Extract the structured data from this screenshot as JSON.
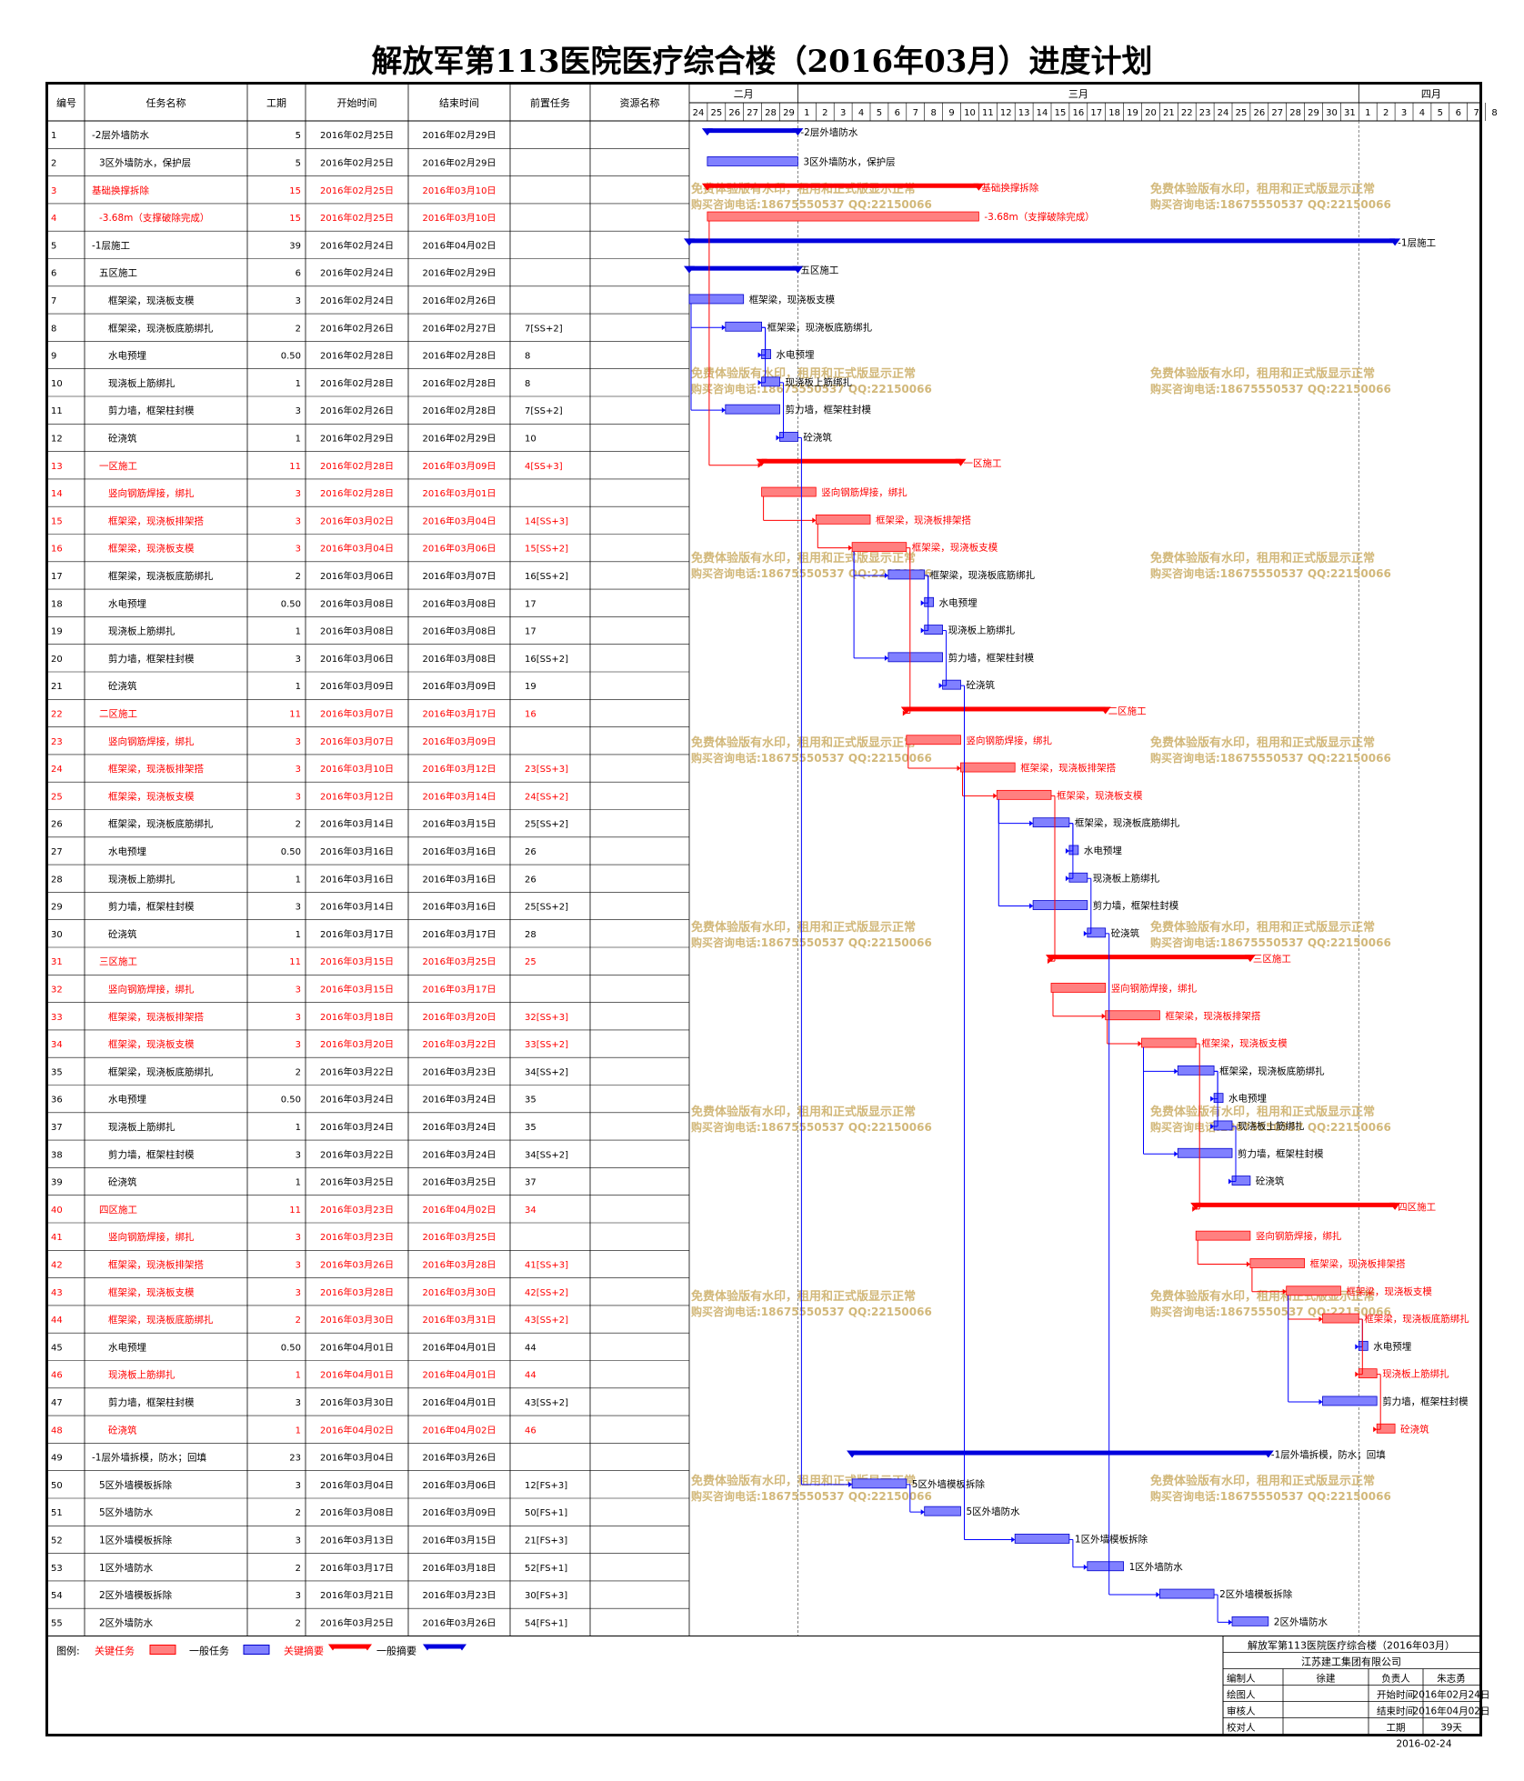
{
  "title": "解放军第113医院医疗综合楼（2016年03月）进度计划",
  "headers": [
    "编号",
    "任务名称",
    "工期",
    "开始时间",
    "结束时间",
    "前置任务",
    "资源名称"
  ],
  "months": [
    "二月",
    "三月",
    "四月"
  ],
  "day_labels": [
    "24",
    "25",
    "26",
    "27",
    "28",
    "29",
    "1",
    "2",
    "3",
    "4",
    "5",
    "6",
    "7",
    "8",
    "9",
    "10",
    "11",
    "12",
    "13",
    "14",
    "15",
    "16",
    "17",
    "18",
    "19",
    "20",
    "21",
    "22",
    "23",
    "24",
    "25",
    "26",
    "27",
    "28",
    "29",
    "30",
    "31",
    "1",
    "2",
    "3",
    "4",
    "5",
    "6",
    "7",
    "8"
  ],
  "watermark": {
    "line1": "免费体验版有水印，租用和正式版显示正常",
    "line2": "购买咨询电话:18675550537 QQ:22150066"
  },
  "colors": {
    "critical": "#ff0000",
    "normal_bar": "#7f7fff",
    "normal_text": "#000000",
    "summary_normal": "#0000dd",
    "link": "#0000ff",
    "watermark": "#d2b87a"
  },
  "legend": {
    "label": "图例:",
    "critical_task": "关键任务",
    "normal_task": "一般任务",
    "critical_summary": "关键摘要",
    "normal_summary": "一般摘要"
  },
  "info": {
    "project": "解放军第113医院医疗综合楼（2016年03月）",
    "company": "江苏建工集团有限公司",
    "rows": [
      [
        "编制人",
        "徐建",
        "负责人",
        "朱志勇"
      ],
      [
        "绘图人",
        "",
        "开始时间",
        "2016年02月24日"
      ],
      [
        "审核人",
        "",
        "结束时间",
        "2016年04月02日"
      ],
      [
        "校对人",
        "",
        "工期",
        "39天"
      ]
    ],
    "date": "2016-02-24"
  },
  "chart_data": {
    "type": "gantt",
    "x_axis": {
      "start": "2016-02-24",
      "end": "2016-04-08"
    },
    "tasks": [
      {
        "id": "1",
        "name": "-2层外墙防水",
        "dur": "5",
        "start": "2016年02月25日",
        "end": "2016年02月29日",
        "pred": "",
        "crit": false,
        "summary": true,
        "lvl": 1
      },
      {
        "id": "2",
        "name": "3区外墙防水，保护层",
        "dur": "5",
        "start": "2016年02月25日",
        "end": "2016年02月29日",
        "pred": "",
        "crit": false,
        "summary": false,
        "lvl": 2
      },
      {
        "id": "3",
        "name": "基础换撑拆除",
        "dur": "15",
        "start": "2016年02月25日",
        "end": "2016年03月10日",
        "pred": "",
        "crit": true,
        "summary": true,
        "lvl": 1
      },
      {
        "id": "4",
        "name": "-3.68m（支撑破除完成）",
        "dur": "15",
        "start": "2016年02月25日",
        "end": "2016年03月10日",
        "pred": "",
        "crit": true,
        "summary": false,
        "lvl": 2
      },
      {
        "id": "5",
        "name": "-1层施工",
        "dur": "39",
        "start": "2016年02月24日",
        "end": "2016年04月02日",
        "pred": "",
        "crit": false,
        "summary": true,
        "lvl": 1
      },
      {
        "id": "6",
        "name": "五区施工",
        "dur": "6",
        "start": "2016年02月24日",
        "end": "2016年02月29日",
        "pred": "",
        "crit": false,
        "summary": true,
        "lvl": 2
      },
      {
        "id": "7",
        "name": "框架梁，现浇板支模",
        "dur": "3",
        "start": "2016年02月24日",
        "end": "2016年02月26日",
        "pred": "",
        "crit": false,
        "summary": false,
        "lvl": 3
      },
      {
        "id": "8",
        "name": "框架梁，现浇板底筋绑扎",
        "dur": "2",
        "start": "2016年02月26日",
        "end": "2016年02月27日",
        "pred": "7[SS+2]",
        "crit": false,
        "summary": false,
        "lvl": 3
      },
      {
        "id": "9",
        "name": "水电预埋",
        "dur": "0.50",
        "start": "2016年02月28日",
        "end": "2016年02月28日",
        "pred": "8",
        "crit": false,
        "summary": false,
        "lvl": 3
      },
      {
        "id": "10",
        "name": "现浇板上筋绑扎",
        "dur": "1",
        "start": "2016年02月28日",
        "end": "2016年02月28日",
        "pred": "8",
        "crit": false,
        "summary": false,
        "lvl": 3
      },
      {
        "id": "11",
        "name": "剪力墙，框架柱封模",
        "dur": "3",
        "start": "2016年02月26日",
        "end": "2016年02月28日",
        "pred": "7[SS+2]",
        "crit": false,
        "summary": false,
        "lvl": 3
      },
      {
        "id": "12",
        "name": "砼浇筑",
        "dur": "1",
        "start": "2016年02月29日",
        "end": "2016年02月29日",
        "pred": "10",
        "crit": false,
        "summary": false,
        "lvl": 3
      },
      {
        "id": "13",
        "name": "一区施工",
        "dur": "11",
        "start": "2016年02月28日",
        "end": "2016年03月09日",
        "pred": "4[SS+3]",
        "crit": true,
        "summary": true,
        "lvl": 2
      },
      {
        "id": "14",
        "name": "竖向钢筋焊接，绑扎",
        "dur": "3",
        "start": "2016年02月28日",
        "end": "2016年03月01日",
        "pred": "",
        "crit": true,
        "summary": false,
        "lvl": 3
      },
      {
        "id": "15",
        "name": "框架梁，现浇板排架搭",
        "dur": "3",
        "start": "2016年03月02日",
        "end": "2016年03月04日",
        "pred": "14[SS+3]",
        "crit": true,
        "summary": false,
        "lvl": 3
      },
      {
        "id": "16",
        "name": "框架梁，现浇板支模",
        "dur": "3",
        "start": "2016年03月04日",
        "end": "2016年03月06日",
        "pred": "15[SS+2]",
        "crit": true,
        "summary": false,
        "lvl": 3
      },
      {
        "id": "17",
        "name": "框架梁，现浇板底筋绑扎",
        "dur": "2",
        "start": "2016年03月06日",
        "end": "2016年03月07日",
        "pred": "16[SS+2]",
        "crit": false,
        "summary": false,
        "lvl": 3
      },
      {
        "id": "18",
        "name": "水电预埋",
        "dur": "0.50",
        "start": "2016年03月08日",
        "end": "2016年03月08日",
        "pred": "17",
        "crit": false,
        "summary": false,
        "lvl": 3
      },
      {
        "id": "19",
        "name": "现浇板上筋绑扎",
        "dur": "1",
        "start": "2016年03月08日",
        "end": "2016年03月08日",
        "pred": "17",
        "crit": false,
        "summary": false,
        "lvl": 3
      },
      {
        "id": "20",
        "name": "剪力墙，框架柱封模",
        "dur": "3",
        "start": "2016年03月06日",
        "end": "2016年03月08日",
        "pred": "16[SS+2]",
        "crit": false,
        "summary": false,
        "lvl": 3
      },
      {
        "id": "21",
        "name": "砼浇筑",
        "dur": "1",
        "start": "2016年03月09日",
        "end": "2016年03月09日",
        "pred": "19",
        "crit": false,
        "summary": false,
        "lvl": 3
      },
      {
        "id": "22",
        "name": "二区施工",
        "dur": "11",
        "start": "2016年03月07日",
        "end": "2016年03月17日",
        "pred": "16",
        "crit": true,
        "summary": true,
        "lvl": 2
      },
      {
        "id": "23",
        "name": "竖向钢筋焊接，绑扎",
        "dur": "3",
        "start": "2016年03月07日",
        "end": "2016年03月09日",
        "pred": "",
        "crit": true,
        "summary": false,
        "lvl": 3
      },
      {
        "id": "24",
        "name": "框架梁，现浇板排架搭",
        "dur": "3",
        "start": "2016年03月10日",
        "end": "2016年03月12日",
        "pred": "23[SS+3]",
        "crit": true,
        "summary": false,
        "lvl": 3
      },
      {
        "id": "25",
        "name": "框架梁，现浇板支模",
        "dur": "3",
        "start": "2016年03月12日",
        "end": "2016年03月14日",
        "pred": "24[SS+2]",
        "crit": true,
        "summary": false,
        "lvl": 3
      },
      {
        "id": "26",
        "name": "框架梁，现浇板底筋绑扎",
        "dur": "2",
        "start": "2016年03月14日",
        "end": "2016年03月15日",
        "pred": "25[SS+2]",
        "crit": false,
        "summary": false,
        "lvl": 3
      },
      {
        "id": "27",
        "name": "水电预埋",
        "dur": "0.50",
        "start": "2016年03月16日",
        "end": "2016年03月16日",
        "pred": "26",
        "crit": false,
        "summary": false,
        "lvl": 3
      },
      {
        "id": "28",
        "name": "现浇板上筋绑扎",
        "dur": "1",
        "start": "2016年03月16日",
        "end": "2016年03月16日",
        "pred": "26",
        "crit": false,
        "summary": false,
        "lvl": 3
      },
      {
        "id": "29",
        "name": "剪力墙，框架柱封模",
        "dur": "3",
        "start": "2016年03月14日",
        "end": "2016年03月16日",
        "pred": "25[SS+2]",
        "crit": false,
        "summary": false,
        "lvl": 3
      },
      {
        "id": "30",
        "name": "砼浇筑",
        "dur": "1",
        "start": "2016年03月17日",
        "end": "2016年03月17日",
        "pred": "28",
        "crit": false,
        "summary": false,
        "lvl": 3
      },
      {
        "id": "31",
        "name": "三区施工",
        "dur": "11",
        "start": "2016年03月15日",
        "end": "2016年03月25日",
        "pred": "25",
        "crit": true,
        "summary": true,
        "lvl": 2
      },
      {
        "id": "32",
        "name": "竖向钢筋焊接，绑扎",
        "dur": "3",
        "start": "2016年03月15日",
        "end": "2016年03月17日",
        "pred": "",
        "crit": true,
        "summary": false,
        "lvl": 3
      },
      {
        "id": "33",
        "name": "框架梁，现浇板排架搭",
        "dur": "3",
        "start": "2016年03月18日",
        "end": "2016年03月20日",
        "pred": "32[SS+3]",
        "crit": true,
        "summary": false,
        "lvl": 3
      },
      {
        "id": "34",
        "name": "框架梁，现浇板支模",
        "dur": "3",
        "start": "2016年03月20日",
        "end": "2016年03月22日",
        "pred": "33[SS+2]",
        "crit": true,
        "summary": false,
        "lvl": 3
      },
      {
        "id": "35",
        "name": "框架梁，现浇板底筋绑扎",
        "dur": "2",
        "start": "2016年03月22日",
        "end": "2016年03月23日",
        "pred": "34[SS+2]",
        "crit": false,
        "summary": false,
        "lvl": 3
      },
      {
        "id": "36",
        "name": "水电预埋",
        "dur": "0.50",
        "start": "2016年03月24日",
        "end": "2016年03月24日",
        "pred": "35",
        "crit": false,
        "summary": false,
        "lvl": 3
      },
      {
        "id": "37",
        "name": "现浇板上筋绑扎",
        "dur": "1",
        "start": "2016年03月24日",
        "end": "2016年03月24日",
        "pred": "35",
        "crit": false,
        "summary": false,
        "lvl": 3
      },
      {
        "id": "38",
        "name": "剪力墙，框架柱封模",
        "dur": "3",
        "start": "2016年03月22日",
        "end": "2016年03月24日",
        "pred": "34[SS+2]",
        "crit": false,
        "summary": false,
        "lvl": 3
      },
      {
        "id": "39",
        "name": "砼浇筑",
        "dur": "1",
        "start": "2016年03月25日",
        "end": "2016年03月25日",
        "pred": "37",
        "crit": false,
        "summary": false,
        "lvl": 3
      },
      {
        "id": "40",
        "name": "四区施工",
        "dur": "11",
        "start": "2016年03月23日",
        "end": "2016年04月02日",
        "pred": "34",
        "crit": true,
        "summary": true,
        "lvl": 2
      },
      {
        "id": "41",
        "name": "竖向钢筋焊接，绑扎",
        "dur": "3",
        "start": "2016年03月23日",
        "end": "2016年03月25日",
        "pred": "",
        "crit": true,
        "summary": false,
        "lvl": 3
      },
      {
        "id": "42",
        "name": "框架梁，现浇板排架搭",
        "dur": "3",
        "start": "2016年03月26日",
        "end": "2016年03月28日",
        "pred": "41[SS+3]",
        "crit": true,
        "summary": false,
        "lvl": 3
      },
      {
        "id": "43",
        "name": "框架梁，现浇板支模",
        "dur": "3",
        "start": "2016年03月28日",
        "end": "2016年03月30日",
        "pred": "42[SS+2]",
        "crit": true,
        "summary": false,
        "lvl": 3
      },
      {
        "id": "44",
        "name": "框架梁，现浇板底筋绑扎",
        "dur": "2",
        "start": "2016年03月30日",
        "end": "2016年03月31日",
        "pred": "43[SS+2]",
        "crit": true,
        "summary": false,
        "lvl": 3
      },
      {
        "id": "45",
        "name": "水电预埋",
        "dur": "0.50",
        "start": "2016年04月01日",
        "end": "2016年04月01日",
        "pred": "44",
        "crit": false,
        "summary": false,
        "lvl": 3
      },
      {
        "id": "46",
        "name": "现浇板上筋绑扎",
        "dur": "1",
        "start": "2016年04月01日",
        "end": "2016年04月01日",
        "pred": "44",
        "crit": true,
        "summary": false,
        "lvl": 3
      },
      {
        "id": "47",
        "name": "剪力墙，框架柱封模",
        "dur": "3",
        "start": "2016年03月30日",
        "end": "2016年04月01日",
        "pred": "43[SS+2]",
        "crit": false,
        "summary": false,
        "lvl": 3
      },
      {
        "id": "48",
        "name": "砼浇筑",
        "dur": "1",
        "start": "2016年04月02日",
        "end": "2016年04月02日",
        "pred": "46",
        "crit": true,
        "summary": false,
        "lvl": 3
      },
      {
        "id": "49",
        "name": "-1层外墙拆模，防水；回填",
        "dur": "23",
        "start": "2016年03月04日",
        "end": "2016年03月26日",
        "pred": "",
        "crit": false,
        "summary": true,
        "lvl": 1
      },
      {
        "id": "50",
        "name": "5区外墙模板拆除",
        "dur": "3",
        "start": "2016年03月04日",
        "end": "2016年03月06日",
        "pred": "12[FS+3]",
        "crit": false,
        "summary": false,
        "lvl": 2
      },
      {
        "id": "51",
        "name": "5区外墙防水",
        "dur": "2",
        "start": "2016年03月08日",
        "end": "2016年03月09日",
        "pred": "50[FS+1]",
        "crit": false,
        "summary": false,
        "lvl": 2
      },
      {
        "id": "52",
        "name": "1区外墙模板拆除",
        "dur": "3",
        "start": "2016年03月13日",
        "end": "2016年03月15日",
        "pred": "21[FS+3]",
        "crit": false,
        "summary": false,
        "lvl": 2
      },
      {
        "id": "53",
        "name": "1区外墙防水",
        "dur": "2",
        "start": "2016年03月17日",
        "end": "2016年03月18日",
        "pred": "52[FS+1]",
        "crit": false,
        "summary": false,
        "lvl": 2
      },
      {
        "id": "54",
        "name": "2区外墙模板拆除",
        "dur": "3",
        "start": "2016年03月21日",
        "end": "2016年03月23日",
        "pred": "30[FS+3]",
        "crit": false,
        "summary": false,
        "lvl": 2
      },
      {
        "id": "55",
        "name": "2区外墙防水",
        "dur": "2",
        "start": "2016年03月25日",
        "end": "2016年03月26日",
        "pred": "54[FS+1]",
        "crit": false,
        "summary": false,
        "lvl": 2
      }
    ]
  }
}
